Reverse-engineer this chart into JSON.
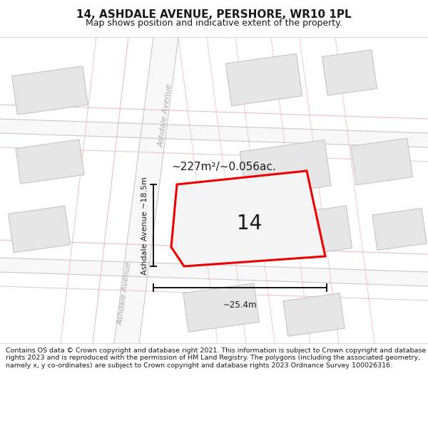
{
  "title": "14, ASHDALE AVENUE, PERSHORE, WR10 1PL",
  "subtitle": "Map shows position and indicative extent of the property.",
  "footer": "Contains OS data © Crown copyright and database right 2021. This information is subject to Crown copyright and database rights 2023 and is reproduced with the permission of HM Land Registry. The polygons (including the associated geometry, namely x, y co-ordinates) are subject to Crown copyright and database rights 2023 Ordnance Survey 100026316.",
  "area_label": "~227m²/~0.056ac.",
  "house_number": "14",
  "width_label": "~25.4m",
  "height_label": "Ashdale Avenue ~18.5m",
  "street_label_top": "Ashdale Avenue",
  "street_label_bottom": "Ashdale Avenue",
  "bg_color": "#f2f0f0",
  "map_bg": "#eeecec",
  "road_color": "#ffffff",
  "road_border_color": "#e8b0b0",
  "building_color": "#e0e0e0",
  "building_border_color": "#c8c8c8",
  "highlight_color": "#ee0000",
  "highlight_fill": "#f5f5f5",
  "text_color": "#1a1a1a",
  "dim_color": "#999999",
  "title_fontsize": 11,
  "subtitle_fontsize": 9,
  "footer_fontsize": 6.8
}
